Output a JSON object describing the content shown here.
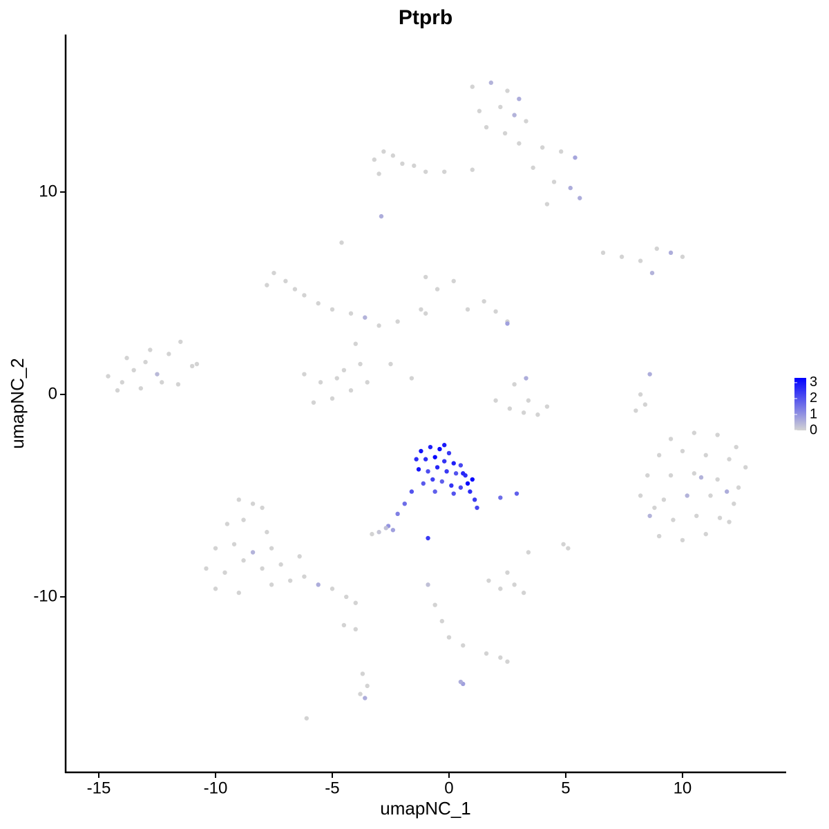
{
  "chart_data": {
    "type": "scatter",
    "title": "Ptprb",
    "x_label": "umapNC_1",
    "y_label": "umapNC_2",
    "xlim": [
      -16.42,
      14.44
    ],
    "ylim": [
      -18.67,
      17.78
    ],
    "xticks": [
      -15,
      -10,
      -5,
      0,
      5,
      10
    ],
    "yticks": [
      -10,
      0,
      10
    ],
    "grid": false,
    "color_low": "#d3d3d3",
    "color_high": "#0000ff",
    "color_range": [
      0,
      3.3
    ],
    "legend_ticks": [
      0,
      1,
      2,
      3
    ],
    "legend_position": "right",
    "x": [
      1.0,
      1.8,
      2.5,
      3.0,
      1.3,
      2.2,
      2.8,
      1.6,
      2.4,
      3.3,
      4.0,
      4.8,
      5.4,
      3.6,
      4.5,
      5.2,
      5.6,
      4.2,
      1.0,
      3.0,
      -3.2,
      -2.8,
      -2.4,
      -2.0,
      -1.5,
      -1.0,
      -0.2,
      -3.0,
      -2.9,
      -4.6,
      -14.6,
      -14.0,
      -13.5,
      -13.0,
      -12.5,
      -12.0,
      -11.5,
      -11.0,
      -14.2,
      -13.2,
      -12.3,
      -11.6,
      -13.8,
      -12.8,
      -10.8,
      -7.5,
      -7.0,
      -6.6,
      -7.8,
      -6.2,
      -5.6,
      -5.0,
      -4.2,
      -3.6,
      -3.0,
      -4.5,
      -5.5,
      -6.2,
      -5.0,
      -4.2,
      -3.8,
      -4.8,
      -3.5,
      -4.0,
      -5.8,
      -2.2,
      -1.2,
      -0.5,
      0.2,
      -1.0,
      -1.0,
      0.8,
      1.5,
      2.0,
      2.5,
      -2.5,
      -1.6,
      2.5,
      2.0,
      2.6,
      3.2,
      3.8,
      4.2,
      3.4,
      2.8,
      3.3,
      8.2,
      8.4,
      8.6,
      8.0,
      6.6,
      7.4,
      8.2,
      8.9,
      9.5,
      10.0,
      8.7,
      9.5,
      10.5,
      11.5,
      12.3,
      9.0,
      10.0,
      11.0,
      12.0,
      12.7,
      8.5,
      9.5,
      10.5,
      11.5,
      12.4,
      8.2,
      9.2,
      10.2,
      11.2,
      12.2,
      8.6,
      9.6,
      10.6,
      11.6,
      12.0,
      9.0,
      10.0,
      11.0,
      8.8,
      11.9,
      10.8,
      -9.0,
      -8.4,
      -8.0,
      -9.5,
      -8.8,
      -7.8,
      -10.0,
      -9.2,
      -8.4,
      -7.6,
      -10.4,
      -9.6,
      -8.8,
      -8.0,
      -7.2,
      -10.0,
      -9.0,
      -6.8,
      -6.2,
      -5.6,
      -5.0,
      -4.4,
      -4.0,
      -7.6,
      -6.4,
      1.7,
      2.2,
      2.8,
      3.2,
      2.5,
      3.4,
      4.9,
      5.1,
      -0.9,
      -0.6,
      -0.3,
      0.0,
      0.6,
      1.6,
      2.2,
      2.5,
      -3.7,
      -3.5,
      -3.8,
      -3.6,
      -6.1,
      -4.0,
      -4.5,
      -1.2,
      -0.8,
      -0.4,
      0.0,
      -1.0,
      -0.6,
      -0.2,
      0.2,
      0.5,
      -1.3,
      -0.9,
      -0.5,
      -0.1,
      0.3,
      0.7,
      1.0,
      -1.1,
      -0.7,
      -0.3,
      0.1,
      0.5,
      0.9,
      1.1,
      1.2,
      -0.6,
      0.2,
      0.8,
      -1.4,
      -0.2,
      0.6,
      -1.6,
      -1.9,
      -2.2,
      -2.6,
      -3.0,
      -2.4,
      -0.9,
      2.2,
      2.9,
      -3.3,
      -2.7,
      0.6,
      0.5
    ],
    "values": [
      15.2,
      15.4,
      15.0,
      14.6,
      14.0,
      14.2,
      13.8,
      13.2,
      12.9,
      13.5,
      12.2,
      12.0,
      11.7,
      11.2,
      10.5,
      10.2,
      9.7,
      9.4,
      11.1,
      12.4,
      11.6,
      12.0,
      11.8,
      11.4,
      11.3,
      11.0,
      11.0,
      10.9,
      8.8,
      7.5,
      0.9,
      0.6,
      1.2,
      1.6,
      1.0,
      2.0,
      2.6,
      1.4,
      0.2,
      0.3,
      0.6,
      0.5,
      1.8,
      2.2,
      1.5,
      6.0,
      5.6,
      5.2,
      5.4,
      4.9,
      4.5,
      4.2,
      4.0,
      3.8,
      3.4,
      1.2,
      0.6,
      1.0,
      -0.2,
      0.2,
      1.5,
      0.8,
      0.6,
      2.5,
      -0.4,
      3.6,
      4.2,
      5.2,
      5.6,
      5.8,
      4.0,
      4.2,
      4.6,
      4.1,
      3.6,
      1.5,
      0.8,
      3.5,
      -0.3,
      -0.7,
      -0.9,
      -1.0,
      -0.6,
      -0.3,
      0.5,
      0.8,
      0.0,
      -0.5,
      1.0,
      -0.8,
      7.0,
      6.8,
      6.6,
      7.2,
      7.0,
      6.8,
      6.0,
      -2.2,
      -1.9,
      -2.0,
      -2.6,
      -3.0,
      -2.8,
      -3.0,
      -3.2,
      -3.6,
      -4.0,
      -4.0,
      -3.9,
      -4.2,
      -4.6,
      -5.0,
      -5.2,
      -5.0,
      -5.0,
      -5.4,
      -6.0,
      -6.2,
      -6.0,
      -6.1,
      -6.3,
      -7.0,
      -7.2,
      -6.9,
      -5.6,
      -4.8,
      -4.1,
      -5.2,
      -5.4,
      -5.6,
      -6.4,
      -6.2,
      -6.8,
      -7.6,
      -7.4,
      -7.8,
      -7.6,
      -8.6,
      -8.8,
      -8.2,
      -8.6,
      -8.4,
      -9.6,
      -9.8,
      -9.2,
      -9.0,
      -9.4,
      -9.6,
      -10.0,
      -10.3,
      -9.4,
      -8.0,
      -9.2,
      -9.6,
      -9.4,
      -9.8,
      -8.8,
      -7.8,
      -7.4,
      -7.6,
      -9.4,
      -10.4,
      -11.2,
      -12.0,
      -12.4,
      -12.8,
      -13.0,
      -13.2,
      -13.8,
      -14.4,
      -14.8,
      -15.0,
      -16.0,
      -11.6,
      -11.4,
      -2.8,
      -2.6,
      -2.7,
      -2.9,
      -3.2,
      -3.1,
      -3.3,
      -3.4,
      -3.5,
      -3.7,
      -3.8,
      -3.6,
      -3.8,
      -3.9,
      -4.0,
      -4.2,
      -4.4,
      -4.2,
      -4.3,
      -4.5,
      -4.6,
      -4.8,
      -5.2,
      -5.6,
      -4.8,
      -4.9,
      -4.4,
      -3.2,
      -2.5,
      -3.9,
      -4.8,
      -5.4,
      -5.9,
      -6.5,
      -6.8,
      -6.7,
      -7.1,
      -5.1,
      -4.9,
      -6.9,
      -6.6,
      -14.3,
      -14.2
    ],
    "expression": [
      0,
      0.5,
      0,
      0.6,
      0,
      0,
      0.5,
      0,
      0,
      0,
      0,
      0,
      0.7,
      0,
      0,
      0.6,
      0.6,
      0,
      0,
      0,
      0,
      0,
      0,
      0,
      0,
      0,
      0,
      0,
      0.6,
      0,
      0,
      0,
      0,
      0,
      0.4,
      0,
      0,
      0,
      0,
      0,
      0,
      0,
      0,
      0,
      0,
      0,
      0,
      0,
      0,
      0,
      0,
      0,
      0,
      0.5,
      0,
      0,
      0,
      0,
      0,
      0,
      0,
      0,
      0,
      0,
      0,
      0,
      0,
      0,
      0,
      0,
      0,
      0,
      0,
      0,
      0,
      0,
      0,
      0.8,
      0,
      0,
      0,
      0,
      0,
      0,
      0,
      0.6,
      0,
      0,
      0.6,
      0,
      0,
      0,
      0,
      0,
      0.6,
      0,
      0.5,
      0,
      0,
      0,
      0,
      0,
      0,
      0,
      0,
      0,
      0,
      0,
      0,
      0,
      0,
      0,
      0,
      0.5,
      0,
      0,
      0.5,
      0,
      0,
      0,
      0,
      0,
      0,
      0,
      0,
      0.6,
      0.5,
      0,
      0,
      0,
      0,
      0,
      0,
      0,
      0,
      0.5,
      0,
      0,
      0,
      0,
      0,
      0,
      0,
      0,
      0,
      0,
      0.6,
      0,
      0,
      0,
      0,
      0,
      0,
      0,
      0,
      0,
      0,
      0,
      0,
      0,
      0.3,
      0,
      0,
      0,
      0,
      0,
      0,
      0,
      0,
      0,
      0,
      0.6,
      0,
      0,
      0,
      3.0,
      2.8,
      3.1,
      2.4,
      2.6,
      3.2,
      2.5,
      2.8,
      2.2,
      3.0,
      2.1,
      2.7,
      2.4,
      2.0,
      2.6,
      3.3,
      1.9,
      2.3,
      1.8,
      2.5,
      2.2,
      2.6,
      2.4,
      2.2,
      1.8,
      2.0,
      3.2,
      2.6,
      2.9,
      2.7,
      2.0,
      1.6,
      1.3,
      1.0,
      0.2,
      0.8,
      2.4,
      1.6,
      1.8,
      0,
      0.3,
      0.8,
      0.6
    ]
  }
}
